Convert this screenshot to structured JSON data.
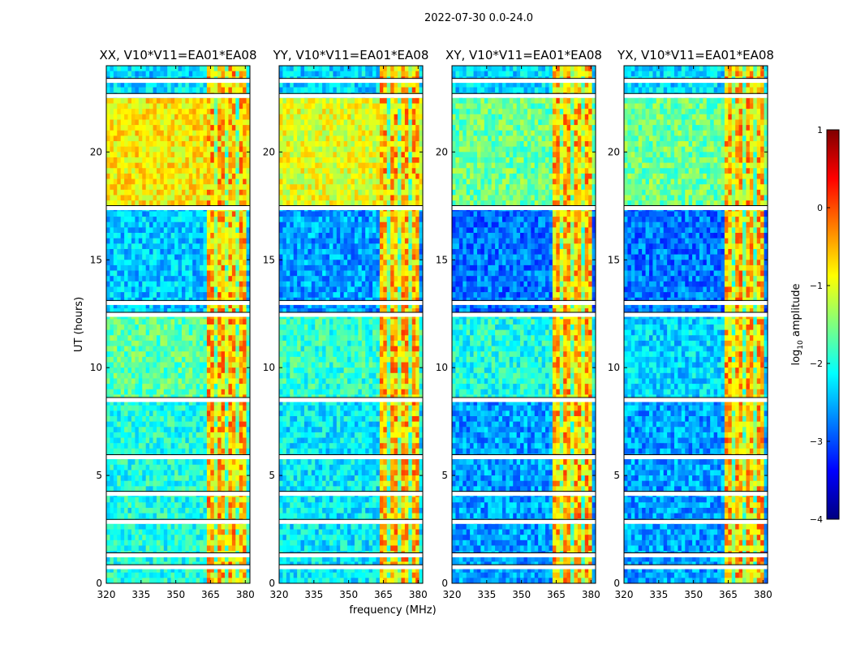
{
  "figure": {
    "suptitle": "2022-07-30 0.0-24.0",
    "ylabel": "UT (hours)",
    "xlabel": "frequency (MHz)"
  },
  "chart_data": {
    "type": "heatmap",
    "panels": [
      {
        "title": "XX, V10*V11=EA01*EA08",
        "pol": "XX"
      },
      {
        "title": "YY, V10*V11=EA01*EA08",
        "pol": "YY"
      },
      {
        "title": "XY, V10*V11=EA01*EA08",
        "pol": "XY"
      },
      {
        "title": "YX, V10*V11=EA01*EA08",
        "pol": "YX"
      }
    ],
    "x_ticks": [
      "320",
      "335",
      "350",
      "365",
      "380"
    ],
    "x_tick_values": [
      320,
      335,
      350,
      365,
      380
    ],
    "xlim": [
      320,
      382
    ],
    "y_ticks": [
      "0",
      "5",
      "10",
      "15",
      "20"
    ],
    "y_tick_values": [
      0,
      5,
      10,
      15,
      20
    ],
    "ylim": [
      0,
      24
    ],
    "colorbar": {
      "label": "log10 amplitude",
      "label_main": "log",
      "label_sub": "10",
      "label_rest": " amplitude",
      "range": [
        -4,
        1
      ],
      "ticks": [
        "1",
        "0",
        "−1",
        "−2",
        "−3",
        "−4"
      ],
      "tick_values": [
        1,
        0,
        -1,
        -2,
        -3,
        -4
      ],
      "colormap": "jet",
      "colors": [
        "#00007f",
        "#0000ff",
        "#007fff",
        "#00ffff",
        "#7fff7f",
        "#ffff00",
        "#ff7f00",
        "#ff0000",
        "#7f0000"
      ]
    },
    "rfi_band_mhz": [
      363,
      380
    ],
    "blank_rows_ut": [
      0.75,
      1.3,
      2.85,
      4.15,
      5.85,
      8.5,
      12.45,
      13.0,
      17.4,
      22.6,
      23.3
    ],
    "segments": [
      {
        "ut": [
          0,
          8.5
        ],
        "level": {
          "XX": -2.0,
          "YY": -2.2,
          "XY": -2.6,
          "YX": -2.6
        }
      },
      {
        "ut": [
          8.5,
          12.4
        ],
        "level": {
          "XX": -1.7,
          "YY": -1.9,
          "XY": -2.0,
          "YX": -2.3
        }
      },
      {
        "ut": [
          12.4,
          17.4
        ],
        "level": {
          "XX": -2.4,
          "YY": -2.6,
          "XY": -2.8,
          "YX": -2.8
        }
      },
      {
        "ut": [
          17.4,
          22.4
        ],
        "level": {
          "XX": -0.8,
          "YY": -1.0,
          "XY": -1.6,
          "YX": -1.6
        }
      },
      {
        "ut": [
          22.4,
          24
        ],
        "level": {
          "XX": -2.3,
          "YY": -2.3,
          "XY": -2.3,
          "YX": -2.3
        }
      }
    ],
    "grid": false
  }
}
